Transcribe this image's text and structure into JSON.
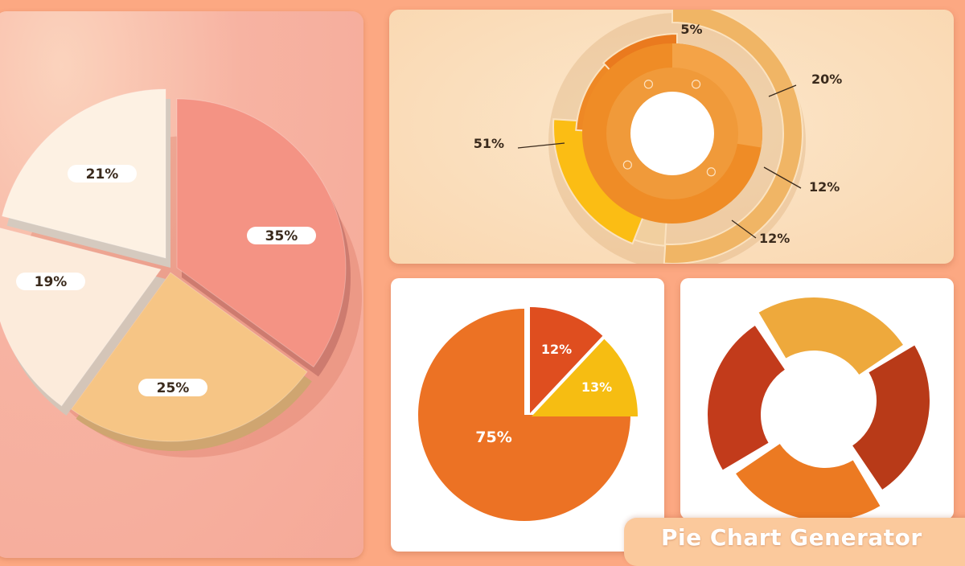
{
  "chart_data": [
    {
      "type": "pie",
      "categories": [
        "35%",
        "25%",
        "19%",
        "21%"
      ],
      "values": [
        35,
        25,
        19,
        21
      ],
      "colors": [
        "#f49384",
        "#f6c585",
        "#fcebdb",
        "#fdf1e3"
      ]
    },
    {
      "type": "pie",
      "variant": "sunburst",
      "categories": [
        "51%",
        "5%",
        "20%",
        "12%",
        "12%"
      ],
      "values": [
        51,
        5,
        20,
        12,
        12
      ],
      "colors": [
        "#f0b565",
        "#f1cf9f",
        "#fbbd14",
        "#ee8825",
        "#ea7a1e"
      ]
    },
    {
      "type": "pie",
      "categories": [
        "75%",
        "12%",
        "13%"
      ],
      "values": [
        75,
        12,
        13
      ],
      "colors": [
        "#ec7224",
        "#df4e1f",
        "#f6bd12"
      ]
    },
    {
      "type": "pie",
      "variant": "donut",
      "values": [
        25,
        25,
        25,
        25
      ],
      "colors": [
        "#eea93c",
        "#b83a18",
        "#ec7a22",
        "#c23b1b"
      ]
    }
  ],
  "banner": {
    "text": "Pie Chart Generator"
  }
}
